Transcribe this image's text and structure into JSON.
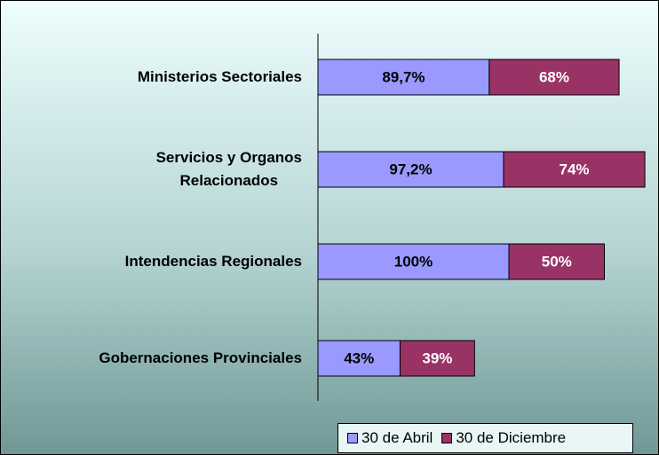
{
  "chart_data": {
    "type": "stacked_barh",
    "categories": [
      "Ministerios Sectoriales",
      "Servicios y Organos\nRelacionados",
      "Intendencias Regionales",
      "Gobernaciones Provinciales"
    ],
    "series": [
      {
        "name": "30 de Abril",
        "color": "#9999ff",
        "values": [
          89.7,
          97.2,
          100,
          43
        ],
        "value_labels": [
          "89,7%",
          "97,2%",
          "100%",
          "43%"
        ]
      },
      {
        "name": "30 de Diciembre",
        "color": "#993366",
        "values": [
          68,
          74,
          50,
          39
        ],
        "value_labels": [
          "68%",
          "74%",
          "50%",
          "39%"
        ]
      }
    ],
    "legend": "bottom-right"
  }
}
